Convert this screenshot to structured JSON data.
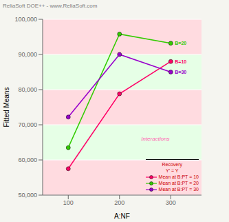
{
  "chart_data": {
    "type": "line",
    "title": "ReliaSoft DOE++ - www.ReliaSoft.com",
    "xlabel": "A:NF",
    "ylabel": "Fitted Means",
    "x": [
      100,
      200,
      300
    ],
    "series": [
      {
        "name": "Mean at B:PT = 10",
        "color": "#ff0066",
        "values": [
          57500,
          78800,
          88000
        ]
      },
      {
        "name": "Mean at B:PT = 20",
        "color": "#33cc00",
        "values": [
          63500,
          95800,
          93200
        ]
      },
      {
        "name": "Mean at B:PT = 30",
        "color": "#9900cc",
        "values": [
          72200,
          90000,
          85000
        ]
      }
    ],
    "xlim": [
      50,
      360
    ],
    "xticks": [
      100,
      200,
      300
    ],
    "ylim": [
      50000,
      100000
    ],
    "yticks": [
      {
        "value": 50000,
        "label": "50,000"
      },
      {
        "value": 60000,
        "label": "60,000"
      },
      {
        "value": 70000,
        "label": "70,000"
      },
      {
        "value": 80000,
        "label": "80,000"
      },
      {
        "value": 90000,
        "label": "90,000"
      },
      {
        "value": 100000,
        "label": "100,000"
      }
    ],
    "grid": true,
    "marker": "circle",
    "legend": "lower right",
    "legend_title": "Recovery\nY' = Y",
    "annotations": [
      {
        "text": "B=10",
        "x": 300,
        "y": 88000,
        "color": "#ff0066"
      },
      {
        "text": "B=20",
        "x": 300,
        "y": 93200,
        "color": "#33cc00"
      },
      {
        "text": "B=30",
        "x": 300,
        "y": 85000,
        "color": "#9900cc"
      },
      {
        "text": "Interactions",
        "color": "#ff69b4"
      }
    ]
  }
}
